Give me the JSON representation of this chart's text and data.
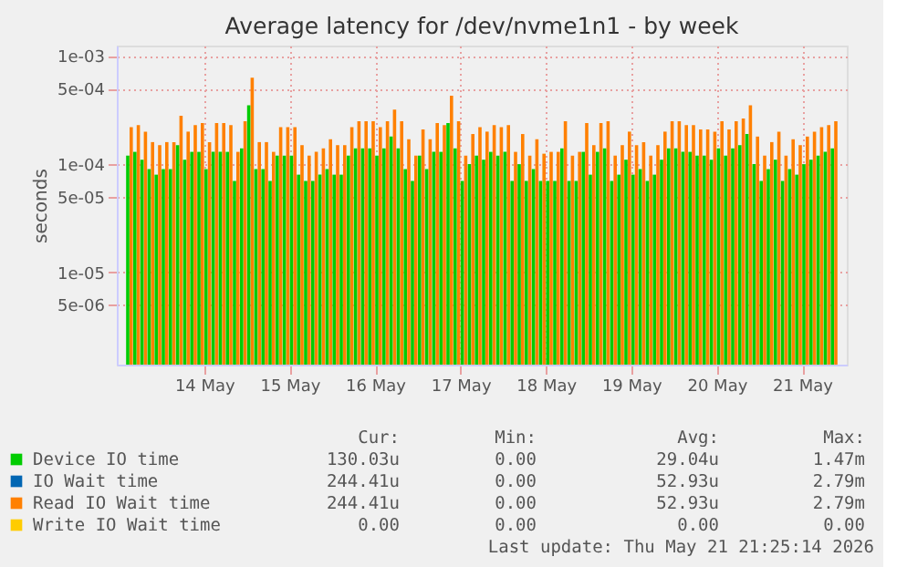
{
  "chart_data": {
    "type": "bar",
    "title": "Average latency for /dev/nvme1n1 - by week",
    "ylabel": "seconds",
    "x": [
      "2026-05-13T15:00",
      "2026-05-13T17:00",
      "2026-05-13T19:00",
      "2026-05-13T21:00",
      "2026-05-13T23:00",
      "2026-05-14T01:00",
      "2026-05-14T03:00",
      "2026-05-14T05:00",
      "2026-05-14T07:00",
      "2026-05-14T09:00",
      "2026-05-14T11:00",
      "2026-05-14T13:00",
      "2026-05-14T15:00",
      "2026-05-14T17:00",
      "2026-05-14T19:00",
      "2026-05-14T21:00",
      "2026-05-14T23:00",
      "2026-05-15T01:00",
      "2026-05-15T03:00",
      "2026-05-15T05:00",
      "2026-05-15T07:00",
      "2026-05-15T09:00",
      "2026-05-15T11:00",
      "2026-05-15T13:00",
      "2026-05-15T15:00",
      "2026-05-15T17:00",
      "2026-05-15T19:00",
      "2026-05-15T21:00",
      "2026-05-15T23:00",
      "2026-05-16T01:00",
      "2026-05-16T03:00",
      "2026-05-16T05:00",
      "2026-05-16T07:00",
      "2026-05-16T09:00",
      "2026-05-16T11:00",
      "2026-05-16T13:00",
      "2026-05-16T15:00",
      "2026-05-16T17:00",
      "2026-05-16T19:00",
      "2026-05-16T21:00",
      "2026-05-16T23:00",
      "2026-05-17T01:00",
      "2026-05-17T03:00",
      "2026-05-17T05:00",
      "2026-05-17T07:00",
      "2026-05-17T09:00",
      "2026-05-17T11:00",
      "2026-05-17T13:00",
      "2026-05-17T15:00",
      "2026-05-17T17:00",
      "2026-05-17T19:00",
      "2026-05-17T21:00",
      "2026-05-17T23:00",
      "2026-05-18T01:00",
      "2026-05-18T03:00",
      "2026-05-18T05:00",
      "2026-05-18T07:00",
      "2026-05-18T09:00",
      "2026-05-18T11:00",
      "2026-05-18T13:00",
      "2026-05-18T15:00",
      "2026-05-18T17:00",
      "2026-05-18T19:00",
      "2026-05-18T21:00",
      "2026-05-18T23:00",
      "2026-05-19T01:00",
      "2026-05-19T03:00",
      "2026-05-19T05:00",
      "2026-05-19T07:00",
      "2026-05-19T09:00",
      "2026-05-19T11:00",
      "2026-05-19T13:00",
      "2026-05-19T15:00",
      "2026-05-19T17:00",
      "2026-05-19T19:00",
      "2026-05-19T21:00",
      "2026-05-19T23:00",
      "2026-05-20T01:00",
      "2026-05-20T03:00",
      "2026-05-20T05:00",
      "2026-05-20T07:00",
      "2026-05-20T09:00",
      "2026-05-20T11:00",
      "2026-05-20T13:00",
      "2026-05-20T15:00",
      "2026-05-20T17:00",
      "2026-05-20T19:00",
      "2026-05-20T21:00",
      "2026-05-20T23:00",
      "2026-05-21T01:00",
      "2026-05-21T03:00",
      "2026-05-21T05:00",
      "2026-05-21T07:00",
      "2026-05-21T09:00",
      "2026-05-21T11:00",
      "2026-05-21T13:00",
      "2026-05-21T15:00",
      "2026-05-21T17:00",
      "2026-05-21T19:00",
      "2026-05-21T21:00"
    ],
    "series": [
      {
        "name": "Device IO time",
        "color": "#00cc00",
        "values": [
          0.00012,
          0.00013,
          0.00011,
          9e-05,
          8e-05,
          9e-05,
          9e-05,
          0.00015,
          0.00011,
          0.00013,
          0.00013,
          9e-05,
          0.00013,
          0.00013,
          0.00013,
          7e-05,
          0.00014,
          0.00035,
          9e-05,
          9e-05,
          7e-05,
          0.00012,
          0.00012,
          0.00012,
          8e-05,
          7e-05,
          7e-05,
          8e-05,
          9e-05,
          8e-05,
          8e-05,
          0.00012,
          0.00014,
          0.00014,
          0.00014,
          0.00012,
          0.00014,
          0.00018,
          0.00014,
          9e-05,
          7e-05,
          0.00012,
          9e-05,
          0.00013,
          0.00013,
          0.00024,
          0.00014,
          7e-05,
          0.0001,
          0.00012,
          0.00011,
          0.00013,
          0.00012,
          0.00013,
          7e-05,
          0.0001,
          7e-05,
          9e-05,
          7e-05,
          7e-05,
          7e-05,
          0.00014,
          7e-05,
          7e-05,
          0.00013,
          8e-05,
          0.00013,
          0.00014,
          7e-05,
          8e-05,
          0.00011,
          8e-05,
          9e-05,
          7e-05,
          8e-05,
          0.00011,
          0.00014,
          0.00014,
          0.00013,
          0.00013,
          0.00012,
          0.00012,
          0.00011,
          0.00014,
          0.00012,
          0.00014,
          0.00015,
          0.00019,
          0.0001,
          7e-05,
          9e-05,
          0.00011,
          7e-05,
          9e-05,
          8e-05,
          0.0001,
          0.00011,
          0.00012,
          0.00013,
          0.00014
        ]
      },
      {
        "name": "IO Wait time",
        "color": "#0066b3",
        "values": [
          null,
          null,
          null,
          null,
          null,
          null,
          null,
          null,
          null,
          null,
          null,
          null,
          null,
          null,
          null,
          null,
          null,
          null,
          null,
          null,
          null,
          null,
          null,
          null,
          null,
          null,
          null,
          null,
          null,
          null,
          null,
          null,
          null,
          null,
          null,
          null,
          null,
          null,
          null,
          null,
          null,
          null,
          null,
          null,
          null,
          null,
          null,
          null,
          null,
          null,
          null,
          null,
          null,
          null,
          null,
          null,
          null,
          null,
          null,
          null,
          null,
          null,
          null,
          null,
          null,
          null,
          null,
          null,
          null,
          null,
          null,
          null,
          null,
          null,
          null,
          null,
          null,
          null,
          null,
          null,
          null,
          null,
          null,
          null,
          null,
          null,
          null,
          null,
          null,
          null,
          null,
          null,
          null,
          null,
          null,
          null,
          null,
          null,
          null,
          null
        ]
      },
      {
        "name": "Read IO Wait time",
        "color": "#ff8000",
        "values": [
          0.00022,
          0.00023,
          0.0002,
          0.00016,
          0.00015,
          0.00016,
          0.00016,
          0.00028,
          0.0002,
          0.00023,
          0.00024,
          0.00016,
          0.00024,
          0.00024,
          0.00023,
          0.00013,
          0.00025,
          0.00063,
          0.00016,
          0.00016,
          0.00013,
          0.00022,
          0.00022,
          0.00022,
          0.00015,
          0.00012,
          0.00013,
          0.00014,
          0.00017,
          0.00015,
          0.00015,
          0.00022,
          0.00025,
          0.00025,
          0.00025,
          0.00022,
          0.00025,
          0.00032,
          0.00025,
          0.00017,
          0.00012,
          0.00021,
          0.00017,
          0.00024,
          0.00023,
          0.00043,
          0.00025,
          0.00012,
          0.00019,
          0.00022,
          0.0002,
          0.00023,
          0.00022,
          0.00023,
          0.00013,
          0.00019,
          0.00012,
          0.00017,
          0.000125,
          0.00013,
          0.00013,
          0.00025,
          0.00012,
          0.00013,
          0.00024,
          0.00015,
          0.00024,
          0.00025,
          0.00012,
          0.00015,
          0.0002,
          0.00015,
          0.00016,
          0.00012,
          0.00015,
          0.0002,
          0.00025,
          0.00025,
          0.00023,
          0.00023,
          0.00021,
          0.00021,
          0.0002,
          0.00025,
          0.00021,
          0.00025,
          0.000265,
          0.00035,
          0.00018,
          0.00012,
          0.00016,
          0.0002,
          0.00012,
          0.00017,
          0.00015,
          0.00018,
          0.0002,
          0.00022,
          0.00023,
          0.00025
        ]
      },
      {
        "name": "Write IO Wait time",
        "color": "#ffcc00",
        "values": [
          null,
          null,
          null,
          null,
          null,
          null,
          null,
          null,
          null,
          null,
          null,
          null,
          null,
          null,
          null,
          null,
          null,
          null,
          null,
          null,
          null,
          null,
          null,
          null,
          null,
          null,
          null,
          null,
          null,
          null,
          null,
          null,
          null,
          null,
          null,
          null,
          null,
          null,
          null,
          null,
          null,
          null,
          null,
          null,
          null,
          null,
          null,
          null,
          null,
          null,
          null,
          null,
          null,
          null,
          null,
          null,
          null,
          null,
          null,
          null,
          null,
          null,
          null,
          null,
          null,
          null,
          null,
          null,
          null,
          null,
          null,
          null,
          null,
          null,
          null,
          null,
          null,
          null,
          null,
          null,
          null,
          null,
          null,
          null,
          null,
          null,
          null,
          null,
          null,
          null,
          null,
          null,
          null,
          null,
          null,
          null,
          null,
          null,
          null,
          null
        ]
      }
    ],
    "log": true,
    "ylim": [
      1.4e-06,
      0.00125
    ],
    "yticks": [
      {
        "value": 5e-06,
        "label": "5e-06"
      },
      {
        "value": 1e-05,
        "label": "1e-05"
      },
      {
        "value": 5e-05,
        "label": "5e-05"
      },
      {
        "value": 0.0001,
        "label": "1e-04"
      },
      {
        "value": 0.0005,
        "label": "5e-04"
      },
      {
        "value": 0.001,
        "label": "1e-03"
      }
    ],
    "xlim": [
      "2026-05-13T14:00",
      "2026-05-21T22:00"
    ],
    "xticks": [
      {
        "value": "2026-05-14T12:00",
        "label": "14 May"
      },
      {
        "value": "2026-05-15T12:00",
        "label": "15 May"
      },
      {
        "value": "2026-05-16T12:00",
        "label": "16 May"
      },
      {
        "value": "2026-05-17T12:00",
        "label": "17 May"
      },
      {
        "value": "2026-05-18T12:00",
        "label": "18 May"
      },
      {
        "value": "2026-05-19T12:00",
        "label": "19 May"
      },
      {
        "value": "2026-05-20T12:00",
        "label": "20 May"
      },
      {
        "value": "2026-05-21T12:00",
        "label": "21 May"
      }
    ],
    "grid": true,
    "legend": "bottom",
    "annotations": [
      "Cur:",
      "Min:",
      "Avg:",
      "Max:",
      "130.03u",
      "0.00",
      "29.04u",
      "1.47m",
      "244.41u",
      "0.00",
      "52.93u",
      "2.79m",
      "244.41u",
      "0.00",
      "52.93u",
      "2.79m",
      "0.00",
      "0.00",
      "0.00",
      "0.00",
      "Last update: Thu May 21 21:25:14 2026"
    ]
  }
}
